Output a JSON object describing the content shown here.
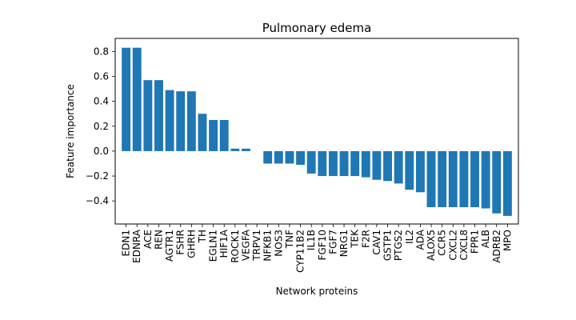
{
  "chart_data": {
    "type": "bar",
    "title": "Pulmonary edema",
    "xlabel": "Network proteins",
    "ylabel": "Feature importance",
    "ylim": [
      -0.585,
      0.905
    ],
    "yticks": [
      -0.4,
      -0.2,
      0.0,
      0.2,
      0.4,
      0.6,
      0.8
    ],
    "ytick_labels": [
      "−0.4",
      "−0.2",
      "0.0",
      "0.2",
      "0.4",
      "0.6",
      "0.8"
    ],
    "grid": false,
    "bar_color": "#1f77b4",
    "categories": [
      "EDN1",
      "EDNRA",
      "ACE",
      "REN",
      "AGTR1",
      "FSHR",
      "GHRH",
      "TH",
      "EGLN1",
      "HIF1A",
      "ROCK1",
      "VEGFA",
      "TRPV1",
      "NFKB1",
      "NOS3",
      "TNF",
      "CYP11B2",
      "IL1B",
      "FGF10",
      "FGF7",
      "NRG1",
      "TEK",
      "F2R",
      "CAV1",
      "GSTP1",
      "PTGS2",
      "IL2",
      "ADA",
      "ALOX5",
      "CCR5",
      "CXCL2",
      "CXCL8",
      "FPR1",
      "ALB",
      "ADRB2",
      "MPO"
    ],
    "values": [
      0.83,
      0.83,
      0.57,
      0.57,
      0.49,
      0.48,
      0.48,
      0.3,
      0.25,
      0.25,
      0.02,
      0.02,
      0.0,
      -0.1,
      -0.1,
      -0.1,
      -0.11,
      -0.18,
      -0.2,
      -0.2,
      -0.2,
      -0.2,
      -0.21,
      -0.23,
      -0.24,
      -0.26,
      -0.31,
      -0.33,
      -0.45,
      -0.45,
      -0.45,
      -0.45,
      -0.45,
      -0.46,
      -0.5,
      -0.52
    ]
  }
}
